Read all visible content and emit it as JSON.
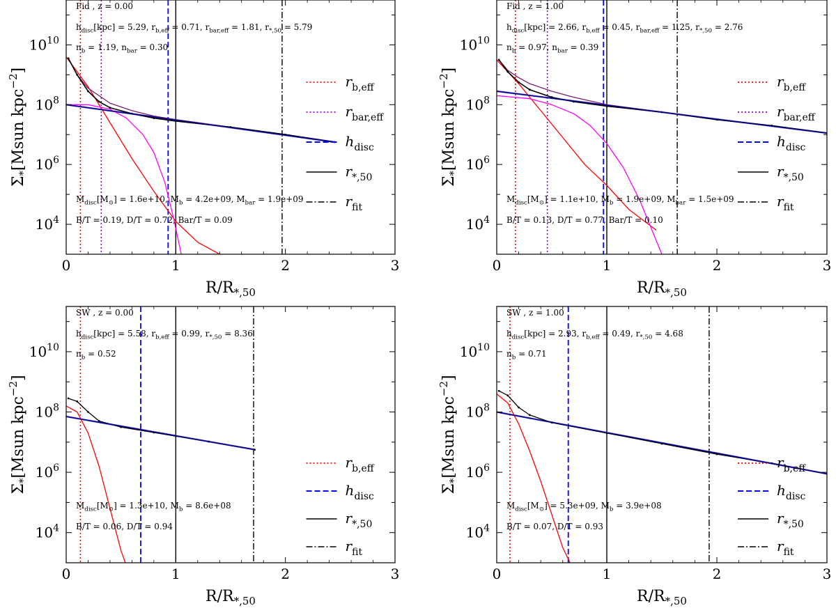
{
  "chart_data": [
    {
      "type": "line",
      "title": "Fid , z = 0.00",
      "xlabel": "R/R*,50",
      "ylabel": "Σ* [Msun kpc^-2]",
      "xlim": [
        0,
        3
      ],
      "ylim_log10": [
        3,
        11.5
      ],
      "xticks": [
        "0",
        "1",
        "2",
        "3"
      ],
      "yticks": [
        {
          "exp": 4,
          "label": "10"
        },
        {
          "exp": 6,
          "label": "10"
        },
        {
          "exp": 8,
          "label": "10"
        },
        {
          "exp": 10,
          "label": "10"
        }
      ],
      "annotations": [
        "h_disc[kpc] = 5.29, r_b,eff = 0.71, r_bar,eff = 1.81, r_*,50 = 5.79",
        "n_b = 1.19, n_bar = 0.30",
        "M_disc[M_⊙] = 1.6e+10, M_b = 4.2e+09, M_bar = 1.9e+09",
        "B/T = 0.19, D/T = 0.72, Bar/T = 0.09"
      ],
      "legend": [
        "r_b,eff",
        "r_bar,eff",
        "h_disc",
        "r_*,50",
        "r_fit"
      ],
      "vlines": {
        "r_b_eff": 0.13,
        "r_bar_eff": 0.32,
        "h_disc": 0.93,
        "r_star_50": 1.0,
        "r_fit": 1.97
      },
      "series": [
        {
          "name": "disc",
          "color": "#6a5acd",
          "x": [
            0,
            2.45
          ],
          "log10_y": [
            8.0,
            6.75
          ]
        },
        {
          "name": "bulge",
          "color": "#ff0000",
          "x": [
            0,
            0.2,
            0.4,
            0.6,
            0.8,
            1.0,
            1.2,
            1.45
          ],
          "log10_y": [
            9.6,
            8.6,
            7.4,
            6.2,
            5.1,
            4.1,
            3.4,
            2.9
          ]
        },
        {
          "name": "bar",
          "color": "#ff00ff",
          "x": [
            0,
            0.2,
            0.4,
            0.55,
            0.7,
            0.8,
            0.9,
            0.98,
            1.05
          ],
          "log10_y": [
            8.0,
            8.0,
            7.85,
            7.55,
            7.0,
            6.4,
            5.4,
            4.2,
            3.0
          ]
        },
        {
          "name": "total",
          "color": "#7a1f6e",
          "x": [
            0.02,
            0.1,
            0.2,
            0.3,
            0.4,
            0.6,
            0.8,
            1.0,
            1.5,
            2.0,
            2.45
          ],
          "log10_y": [
            9.55,
            9.0,
            8.55,
            8.3,
            8.05,
            7.8,
            7.62,
            7.5,
            7.25,
            7.0,
            6.75
          ]
        },
        {
          "name": "data",
          "color": "#000000",
          "x": [
            0.02,
            0.1,
            0.2,
            0.3,
            0.4,
            0.6,
            0.8,
            1.0,
            1.5,
            2.0,
            2.45
          ],
          "log10_y": [
            9.55,
            9.0,
            8.45,
            8.1,
            7.9,
            7.7,
            7.55,
            7.45,
            7.25,
            7.0,
            6.75
          ]
        }
      ]
    },
    {
      "type": "line",
      "title": "Fid , z = 1.00",
      "xlabel": "R/R*,50",
      "ylabel": "Σ* [Msun kpc^-2]",
      "xlim": [
        0,
        3
      ],
      "ylim_log10": [
        3,
        11.5
      ],
      "xticks": [
        "0",
        "1",
        "2",
        "3"
      ],
      "yticks": [
        {
          "exp": 4,
          "label": "10"
        },
        {
          "exp": 6,
          "label": "10"
        },
        {
          "exp": 8,
          "label": "10"
        },
        {
          "exp": 10,
          "label": "10"
        }
      ],
      "annotations": [
        "h_disc[kpc] = 2.66, r_b,eff = 0.45, r_bar,eff = 1.25, r_*,50 = 2.76",
        "n_b = 0.97, n_bar = 0.39",
        "M_disc[M_⊙] = 1.1e+10, M_b = 1.9e+09, M_bar = 1.5e+09",
        "B/T = 0.13, D/T = 0.77, Bar/T = 0.10"
      ],
      "legend": [
        "r_b,eff",
        "r_bar,eff",
        "h_disc",
        "r_*,50",
        "r_fit"
      ],
      "vlines": {
        "r_b_eff": 0.17,
        "r_bar_eff": 0.46,
        "h_disc": 0.97,
        "r_star_50": 1.0,
        "r_fit": 1.64
      },
      "series": [
        {
          "name": "disc",
          "color": "#6a5acd",
          "x": [
            0,
            3.0
          ],
          "log10_y": [
            8.45,
            7.05
          ]
        },
        {
          "name": "bulge",
          "color": "#ff0000",
          "x": [
            0,
            0.2,
            0.4,
            0.6,
            0.8,
            1.0,
            1.2,
            1.45
          ],
          "log10_y": [
            9.5,
            8.7,
            7.8,
            6.9,
            6.0,
            5.3,
            4.5,
            3.8
          ]
        },
        {
          "name": "bar",
          "color": "#ff00ff",
          "x": [
            0,
            0.3,
            0.5,
            0.7,
            0.85,
            1.0,
            1.15,
            1.3,
            1.5
          ],
          "log10_y": [
            8.3,
            8.2,
            8.0,
            7.7,
            7.3,
            6.7,
            5.9,
            4.8,
            3.0
          ]
        },
        {
          "name": "total",
          "color": "#7a1f6e",
          "x": [
            0.02,
            0.1,
            0.2,
            0.3,
            0.5,
            0.7,
            1.0,
            1.5,
            2.0,
            2.5,
            3.0
          ],
          "log10_y": [
            9.5,
            9.15,
            8.9,
            8.7,
            8.45,
            8.25,
            8.0,
            7.75,
            7.5,
            7.3,
            7.05
          ]
        },
        {
          "name": "data",
          "color": "#000000",
          "x": [
            0.02,
            0.1,
            0.2,
            0.3,
            0.5,
            0.7,
            1.0,
            1.5,
            2.0,
            2.5,
            3.0
          ],
          "log10_y": [
            9.5,
            9.1,
            8.75,
            8.5,
            8.25,
            8.1,
            7.95,
            7.75,
            7.5,
            7.3,
            7.05
          ]
        }
      ]
    },
    {
      "type": "line",
      "title": "SW , z = 0.00",
      "xlabel": "R/R*,50",
      "ylabel": "Σ* [Msun kpc^-2]",
      "xlim": [
        0,
        3
      ],
      "ylim_log10": [
        3,
        11.5
      ],
      "xticks": [
        "0",
        "1",
        "2",
        "3"
      ],
      "yticks": [
        {
          "exp": 4,
          "label": "10"
        },
        {
          "exp": 6,
          "label": "10"
        },
        {
          "exp": 8,
          "label": "10"
        },
        {
          "exp": 10,
          "label": "10"
        }
      ],
      "annotations": [
        "h_disc[kpc] = 5.58, r_b,eff = 0.99, r_*,50 = 8.36",
        "n_b = 0.52",
        "M_disc[M_⊙] = 1.3e+10, M_b = 8.6e+08",
        "B/T = 0.06, D/T = 0.94"
      ],
      "legend": [
        "r_b,eff",
        "h_disc",
        "r_*,50",
        "r_fit"
      ],
      "vlines": {
        "r_b_eff": 0.13,
        "h_disc": 0.68,
        "r_star_50": 1.0,
        "r_fit": 1.71
      },
      "series": [
        {
          "name": "disc",
          "color": "#6a5acd",
          "x": [
            0,
            1.72
          ],
          "log10_y": [
            7.85,
            6.75
          ]
        },
        {
          "name": "bulge",
          "color": "#ff0000",
          "x": [
            0,
            0.1,
            0.2,
            0.3,
            0.4,
            0.5,
            0.55
          ],
          "log10_y": [
            8.2,
            8.0,
            7.3,
            6.2,
            4.8,
            3.4,
            2.9
          ]
        },
        {
          "name": "total",
          "color": "#000000",
          "x": [
            0.02,
            0.1,
            0.2,
            0.3,
            0.5,
            0.8,
            1.0,
            1.3,
            1.72
          ],
          "log10_y": [
            8.45,
            8.35,
            8.0,
            7.7,
            7.5,
            7.32,
            7.2,
            7.02,
            6.75
          ]
        }
      ]
    },
    {
      "type": "line",
      "title": "SW , z = 1.00",
      "xlabel": "R/R*,50",
      "ylabel": "Σ* [Msun kpc^-2]",
      "xlim": [
        0,
        3
      ],
      "ylim_log10": [
        3,
        11.5
      ],
      "xticks": [
        "0",
        "1",
        "2",
        "3"
      ],
      "yticks": [
        {
          "exp": 4,
          "label": "10"
        },
        {
          "exp": 6,
          "label": "10"
        },
        {
          "exp": 8,
          "label": "10"
        },
        {
          "exp": 10,
          "label": "10"
        }
      ],
      "annotations": [
        "h_disc[kpc] = 2.93, r_b,eff = 0.49, r_*,50 = 4.68",
        "n_b = 0.71",
        "M_disc[M_⊙] = 5.3e+09, M_b = 3.9e+08",
        "B/T = 0.07, D/T = 0.93"
      ],
      "legend": [
        "r_b,eff",
        "h_disc",
        "r_*,50",
        "r_fit"
      ],
      "vlines": {
        "r_b_eff": 0.12,
        "h_disc": 0.65,
        "r_star_50": 1.0,
        "r_fit": 1.93
      },
      "series": [
        {
          "name": "disc",
          "color": "#6a5acd",
          "x": [
            0,
            3.0
          ],
          "log10_y": [
            8.0,
            5.95
          ]
        },
        {
          "name": "bulge",
          "color": "#ff0000",
          "x": [
            0,
            0.1,
            0.2,
            0.3,
            0.4,
            0.5,
            0.6,
            0.68
          ],
          "log10_y": [
            8.6,
            8.3,
            7.6,
            6.7,
            5.7,
            4.6,
            3.5,
            2.9
          ]
        },
        {
          "name": "total",
          "color": "#000000",
          "x": [
            0.02,
            0.1,
            0.2,
            0.3,
            0.5,
            1.0,
            1.5,
            2.0,
            2.5,
            3.0
          ],
          "log10_y": [
            8.7,
            8.55,
            8.15,
            7.9,
            7.65,
            7.3,
            6.95,
            6.6,
            6.3,
            5.95
          ]
        }
      ]
    }
  ]
}
